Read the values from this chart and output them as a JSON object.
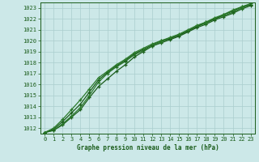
{
  "title": "Graphe pression niveau de la mer (hPa)",
  "bg_color": "#cce8e8",
  "grid_color": "#aacece",
  "line_color_dark": "#1a5c1a",
  "line_color_mid": "#2a7a2a",
  "xlim": [
    -0.5,
    23.5
  ],
  "ylim": [
    1011.5,
    1023.5
  ],
  "xticks": [
    0,
    1,
    2,
    3,
    4,
    5,
    6,
    7,
    8,
    9,
    10,
    11,
    12,
    13,
    14,
    15,
    16,
    17,
    18,
    19,
    20,
    21,
    22,
    23
  ],
  "yticks": [
    1012,
    1013,
    1014,
    1015,
    1016,
    1017,
    1018,
    1019,
    1020,
    1021,
    1022,
    1023
  ],
  "series1_x": [
    0,
    1,
    2,
    3,
    4,
    5,
    6,
    7,
    8,
    9,
    10,
    11,
    12,
    13,
    14,
    15,
    16,
    17,
    18,
    19,
    20,
    21,
    22,
    23
  ],
  "series1_y": [
    1011.6,
    1011.8,
    1012.3,
    1013.0,
    1013.7,
    1014.8,
    1015.8,
    1016.5,
    1017.2,
    1017.8,
    1018.5,
    1019.0,
    1019.5,
    1019.8,
    1020.1,
    1020.4,
    1020.8,
    1021.2,
    1021.5,
    1021.9,
    1022.2,
    1022.5,
    1022.9,
    1023.2
  ],
  "series2_x": [
    0,
    1,
    2,
    3,
    4,
    5,
    6,
    7,
    8,
    9,
    10,
    11,
    12,
    13,
    14,
    15,
    16,
    17,
    18,
    19,
    20,
    21,
    22,
    23
  ],
  "series2_y": [
    1011.6,
    1011.8,
    1012.4,
    1013.1,
    1013.9,
    1015.0,
    1016.2,
    1017.0,
    1017.6,
    1018.1,
    1018.7,
    1019.1,
    1019.5,
    1019.9,
    1020.2,
    1020.5,
    1020.9,
    1021.3,
    1021.6,
    1022.0,
    1022.3,
    1022.6,
    1023.0,
    1023.3
  ],
  "series3_x": [
    0,
    1,
    2,
    3,
    4,
    5,
    6,
    7,
    8,
    9,
    10,
    11,
    12,
    13,
    14,
    15,
    16,
    17,
    18,
    19,
    20,
    21,
    22,
    23
  ],
  "series3_y": [
    1011.6,
    1011.9,
    1012.6,
    1013.4,
    1014.2,
    1015.3,
    1016.4,
    1017.1,
    1017.7,
    1018.2,
    1018.8,
    1019.2,
    1019.6,
    1020.0,
    1020.2,
    1020.5,
    1020.9,
    1021.3,
    1021.7,
    1022.0,
    1022.4,
    1022.7,
    1023.1,
    1023.3
  ],
  "series4_x": [
    0,
    1,
    2,
    3,
    4,
    5,
    6,
    7,
    8,
    9,
    10,
    11,
    12,
    13,
    14,
    15,
    16,
    17,
    18,
    19,
    20,
    21,
    22,
    23
  ],
  "series4_y": [
    1011.6,
    1012.0,
    1012.8,
    1013.7,
    1014.6,
    1015.6,
    1016.6,
    1017.2,
    1017.8,
    1018.3,
    1018.9,
    1019.3,
    1019.7,
    1020.0,
    1020.3,
    1020.6,
    1021.0,
    1021.4,
    1021.7,
    1022.1,
    1022.4,
    1022.8,
    1023.1,
    1023.4
  ]
}
